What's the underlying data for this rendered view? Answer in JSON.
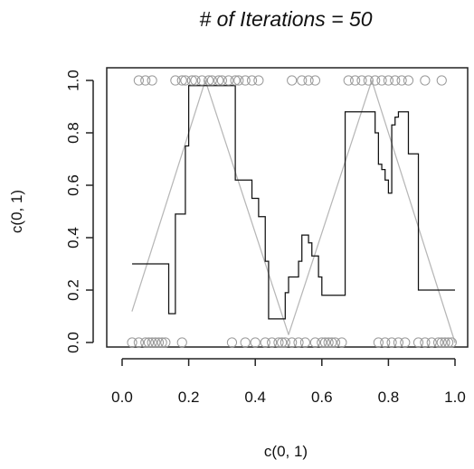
{
  "chart_data": {
    "type": "line",
    "title": "# of Iterations =  50",
    "xlabel": "c(0, 1)",
    "ylabel": "c(0, 1)",
    "xlim": [
      0,
      1
    ],
    "ylim": [
      0,
      1
    ],
    "x_ticks": [
      "0.0",
      "0.2",
      "0.4",
      "0.6",
      "0.8",
      "1.0"
    ],
    "y_ticks": [
      "0.0",
      "0.2",
      "0.4",
      "0.6",
      "0.8",
      "1.0"
    ],
    "grid": false,
    "colors": {
      "background": "#ffffff",
      "axis": "#222222",
      "model_line": "#111111",
      "reference_line": "#b7b7b7",
      "point_stroke": "#9a9a9a"
    },
    "series": [
      {
        "type": "points",
        "marker": "circle",
        "points": [
          [
            0.05,
            1.0
          ],
          [
            0.07,
            1.0
          ],
          [
            0.09,
            1.0
          ],
          [
            0.16,
            1.0
          ],
          [
            0.18,
            1.0
          ],
          [
            0.19,
            1.0
          ],
          [
            0.21,
            1.0
          ],
          [
            0.22,
            1.0
          ],
          [
            0.24,
            1.0
          ],
          [
            0.26,
            1.0
          ],
          [
            0.27,
            1.0
          ],
          [
            0.29,
            1.0
          ],
          [
            0.3,
            1.0
          ],
          [
            0.32,
            1.0
          ],
          [
            0.34,
            1.0
          ],
          [
            0.35,
            1.0
          ],
          [
            0.37,
            1.0
          ],
          [
            0.39,
            1.0
          ],
          [
            0.41,
            1.0
          ],
          [
            0.51,
            1.0
          ],
          [
            0.54,
            1.0
          ],
          [
            0.56,
            1.0
          ],
          [
            0.58,
            1.0
          ],
          [
            0.68,
            1.0
          ],
          [
            0.7,
            1.0
          ],
          [
            0.72,
            1.0
          ],
          [
            0.74,
            1.0
          ],
          [
            0.76,
            1.0
          ],
          [
            0.78,
            1.0
          ],
          [
            0.8,
            1.0
          ],
          [
            0.82,
            1.0
          ],
          [
            0.84,
            1.0
          ],
          [
            0.86,
            1.0
          ],
          [
            0.91,
            1.0
          ],
          [
            0.96,
            1.0
          ],
          [
            0.03,
            0.0
          ],
          [
            0.05,
            0.0
          ],
          [
            0.07,
            0.0
          ],
          [
            0.08,
            0.0
          ],
          [
            0.09,
            0.0
          ],
          [
            0.1,
            0.0
          ],
          [
            0.11,
            0.0
          ],
          [
            0.12,
            0.0
          ],
          [
            0.13,
            0.0
          ],
          [
            0.18,
            0.0
          ],
          [
            0.33,
            0.0
          ],
          [
            0.37,
            0.0
          ],
          [
            0.4,
            0.0
          ],
          [
            0.43,
            0.0
          ],
          [
            0.45,
            0.0
          ],
          [
            0.47,
            0.0
          ],
          [
            0.48,
            0.0
          ],
          [
            0.49,
            0.0
          ],
          [
            0.51,
            0.0
          ],
          [
            0.53,
            0.0
          ],
          [
            0.55,
            0.0
          ],
          [
            0.58,
            0.0
          ],
          [
            0.6,
            0.0
          ],
          [
            0.61,
            0.0
          ],
          [
            0.62,
            0.0
          ],
          [
            0.63,
            0.0
          ],
          [
            0.64,
            0.0
          ],
          [
            0.66,
            0.0
          ],
          [
            0.77,
            0.0
          ],
          [
            0.79,
            0.0
          ],
          [
            0.81,
            0.0
          ],
          [
            0.83,
            0.0
          ],
          [
            0.85,
            0.0
          ],
          [
            0.89,
            0.0
          ],
          [
            0.91,
            0.0
          ],
          [
            0.93,
            0.0
          ],
          [
            0.95,
            0.0
          ],
          [
            0.96,
            0.0
          ],
          [
            0.97,
            0.0
          ],
          [
            0.98,
            0.0
          ],
          [
            0.99,
            0.0
          ]
        ]
      },
      {
        "type": "line",
        "role": "model",
        "x": [
          0.03,
          0.14,
          0.14,
          0.16,
          0.16,
          0.19,
          0.19,
          0.2,
          0.2,
          0.34,
          0.34,
          0.39,
          0.39,
          0.41,
          0.41,
          0.43,
          0.43,
          0.44,
          0.44,
          0.49,
          0.49,
          0.5,
          0.5,
          0.53,
          0.53,
          0.54,
          0.54,
          0.56,
          0.56,
          0.57,
          0.57,
          0.59,
          0.59,
          0.6,
          0.6,
          0.67,
          0.67,
          0.76,
          0.76,
          0.77,
          0.77,
          0.78,
          0.78,
          0.79,
          0.79,
          0.8,
          0.8,
          0.81,
          0.81,
          0.82,
          0.82,
          0.83,
          0.83,
          0.86,
          0.86,
          0.89,
          0.89,
          0.9,
          0.9,
          1.0
        ],
        "y": [
          0.3,
          0.3,
          0.11,
          0.11,
          0.49,
          0.49,
          0.75,
          0.75,
          0.98,
          0.98,
          0.62,
          0.62,
          0.55,
          0.55,
          0.48,
          0.48,
          0.31,
          0.31,
          0.09,
          0.09,
          0.19,
          0.19,
          0.25,
          0.25,
          0.31,
          0.31,
          0.41,
          0.41,
          0.38,
          0.38,
          0.33,
          0.33,
          0.25,
          0.25,
          0.18,
          0.18,
          0.88,
          0.88,
          0.8,
          0.8,
          0.68,
          0.68,
          0.66,
          0.66,
          0.62,
          0.62,
          0.57,
          0.57,
          0.83,
          0.83,
          0.86,
          0.86,
          0.88,
          0.88,
          0.72,
          0.72,
          0.2,
          0.2,
          0.2,
          0.2
        ]
      },
      {
        "type": "line",
        "role": "reference",
        "x": [
          0.03,
          0.25,
          0.5,
          0.75,
          1.0
        ],
        "y": [
          0.12,
          1.0,
          0.03,
          1.0,
          0.0
        ]
      }
    ]
  }
}
